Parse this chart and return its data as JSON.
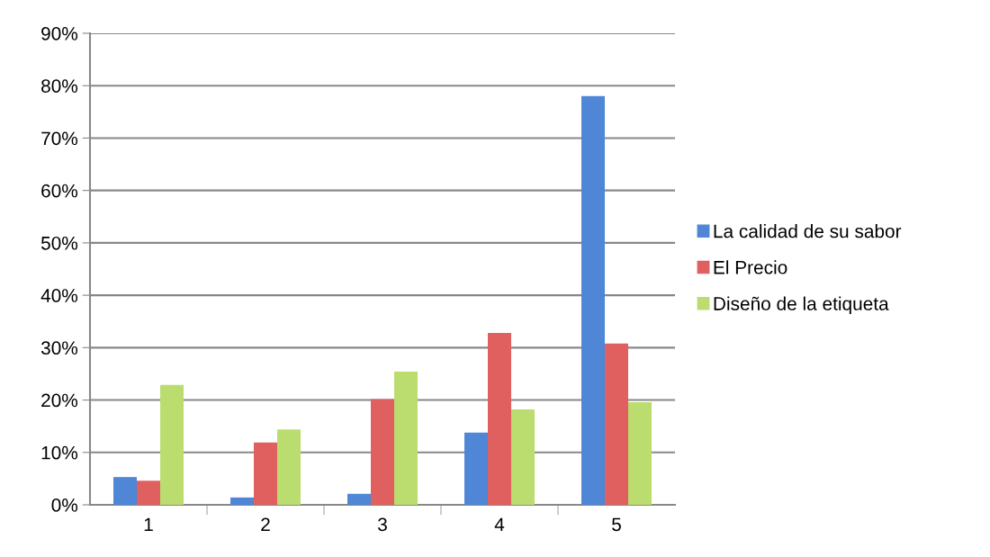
{
  "chart_data": {
    "type": "bar",
    "categories": [
      "1",
      "2",
      "3",
      "4",
      "5"
    ],
    "series": [
      {
        "name": "La calidad de su sabor",
        "color": "#4f86d6",
        "values": [
          5.3,
          1.4,
          2.1,
          13.8,
          78
        ]
      },
      {
        "name": "El Precio",
        "color": "#e06060",
        "values": [
          4.6,
          11.9,
          20.2,
          32.8,
          30.8
        ]
      },
      {
        "name": "Diseño de la etiqueta",
        "color": "#bbdd70",
        "values": [
          22.9,
          14.4,
          25.4,
          18.2,
          19.6
        ]
      }
    ],
    "ylim": [
      0,
      90
    ],
    "yticks": [
      {
        "value": 0,
        "label": "0%"
      },
      {
        "value": 10,
        "label": "10%"
      },
      {
        "value": 20,
        "label": "20%"
      },
      {
        "value": 30,
        "label": "30%"
      },
      {
        "value": 40,
        "label": "40%"
      },
      {
        "value": 50,
        "label": "50%"
      },
      {
        "value": 60,
        "label": "60%"
      },
      {
        "value": 70,
        "label": "70%"
      },
      {
        "value": 80,
        "label": "80%"
      },
      {
        "value": 90,
        "label": "90%"
      }
    ],
    "grid": "y",
    "legend": "right"
  }
}
